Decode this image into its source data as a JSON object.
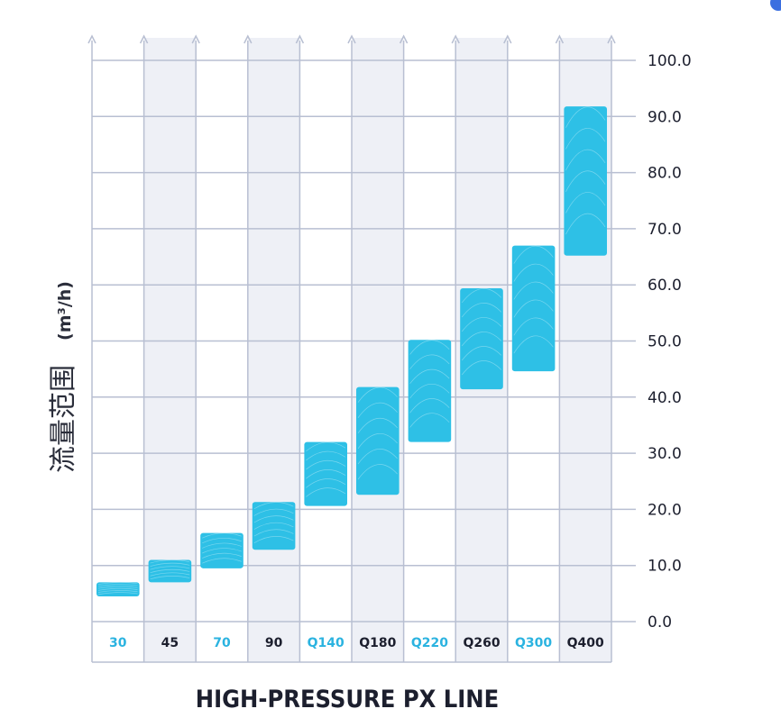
{
  "chart_data": {
    "type": "floating-bar",
    "title": "",
    "xlabel": "HIGH-PRESSURE PX LINE",
    "ylabel": "流量范围",
    "ylabel_unit": "(m³/h)",
    "ylim": [
      0,
      100
    ],
    "yticks": [
      "0.0",
      "10.0",
      "20.0",
      "30.0",
      "40.0",
      "50.0",
      "60.0",
      "70.0",
      "80.0",
      "90.0",
      "100.0"
    ],
    "categories": [
      "30",
      "45",
      "70",
      "90",
      "Q140",
      "Q180",
      "Q220",
      "Q260",
      "Q300",
      "Q400"
    ],
    "ranges": [
      [
        4.5,
        7.0
      ],
      [
        7.0,
        11.0
      ],
      [
        9.5,
        15.8
      ],
      [
        12.8,
        21.3
      ],
      [
        20.6,
        32.0
      ],
      [
        22.6,
        41.8
      ],
      [
        32.0,
        50.2
      ],
      [
        41.4,
        59.4
      ],
      [
        44.6,
        67.0
      ],
      [
        65.2,
        91.8
      ]
    ],
    "colors": {
      "bar": "#2ec0e6",
      "grid": "#b8bfd2",
      "band": "#eef0f6",
      "label_blue": "#2bb3e0",
      "label_dark": "#1c1f2e"
    }
  }
}
